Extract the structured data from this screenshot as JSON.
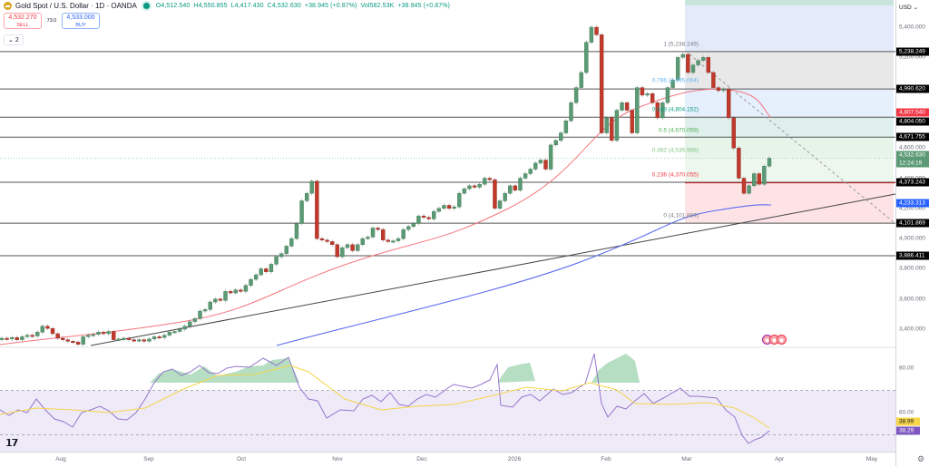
{
  "header": {
    "symbol_title": "Gold Spot / U.S. Dollar · 1D · OANDA",
    "open": "O4,512.540",
    "high": "H4,550.855",
    "low": "L4,417.430",
    "close": "C4,532.630",
    "change": "+38.945 (+0.87%)",
    "volume": "Vol582.53K",
    "volume_change": "+38.945 (+0.87%)",
    "sell_price": "4,532.270",
    "sell_label": "SELL",
    "spread": "73.0",
    "buy_price": "4,533.000",
    "buy_label": "BUY",
    "collapse_label": "2"
  },
  "price_axis": {
    "currency": "USD",
    "ticks": [
      "5,400.000",
      "5,200.000",
      "4,600.000",
      "4,400.000",
      "4,200.000",
      "4,000.000",
      "3,800.000",
      "3,600.000",
      "3,400.000"
    ],
    "tags": [
      {
        "value": "5,238.249",
        "color": "#000000"
      },
      {
        "value": "4,990.620",
        "color": "#000000"
      },
      {
        "value": "4,807.540",
        "color": "#f23645"
      },
      {
        "value": "4,804.050",
        "color": "#000000"
      },
      {
        "value": "4,671.755",
        "color": "#000000"
      },
      {
        "value": "4,532.630",
        "color": "#5b9a74"
      },
      {
        "value": "12:24:19",
        "color": "#5b9a74"
      },
      {
        "value": "4,373.243",
        "color": "#000000"
      },
      {
        "value": "4,233.313",
        "color": "#2962ff"
      },
      {
        "value": "4,101.869",
        "color": "#000000"
      },
      {
        "value": "3,886.411",
        "color": "#000000"
      }
    ]
  },
  "rsi_axis": {
    "ticks": [
      "80.00",
      "60.00"
    ],
    "rsi_value": "38.29",
    "rsi_ma_value": "38.99",
    "rsi_color": "#7e57c2",
    "rsi_ma_color": "#f5d54a"
  },
  "time_axis": [
    "Aug",
    "Sep",
    "Oct",
    "Nov",
    "Dec",
    "2026",
    "Feb",
    "Mar",
    "Apr",
    "May"
  ],
  "fib_labels": [
    {
      "text": "1 (5,238.249)",
      "color": "#787b86"
    },
    {
      "text": "0.786 (4,995.064)",
      "color": "#64b5f6"
    },
    {
      "text": "0.618 (4,804.152)",
      "color": "#089981"
    },
    {
      "text": "0.5 (4,670.059)",
      "color": "#4caf50"
    },
    {
      "text": "0.382 (4,535.966)",
      "color": "#81c784"
    },
    {
      "text": "0.236 (4,370.055)",
      "color": "#f23645"
    },
    {
      "text": "0 (4,101.869)",
      "color": "#787b86"
    }
  ],
  "chart_data": {
    "type": "candlestick",
    "title": "Gold Spot / U.S. Dollar · 1D · OANDA",
    "x_range": [
      "2025-07-15",
      "2026-05-10"
    ],
    "y_range": [
      3300,
      5500
    ],
    "horizontal_levels": [
      5238.249,
      4990.62,
      4804.05,
      4671.755,
      4373.243,
      4101.869,
      3886.411
    ],
    "fibonacci": {
      "from": 4101.869,
      "to": 5238.249,
      "levels": [
        {
          "ratio": 1,
          "price": 5238.249
        },
        {
          "ratio": 0.786,
          "price": 4995.064
        },
        {
          "ratio": 0.618,
          "price": 4804.152
        },
        {
          "ratio": 0.5,
          "price": 4670.059
        },
        {
          "ratio": 0.382,
          "price": 4535.966
        },
        {
          "ratio": 0.236,
          "price": 4370.055
        },
        {
          "ratio": 0,
          "price": 4101.869
        }
      ]
    },
    "moving_averages": [
      {
        "name": "MA (red)",
        "color": "#f23645",
        "last": 4807.54
      },
      {
        "name": "MA (blue)",
        "color": "#2962ff",
        "last": 4233.313
      }
    ],
    "close_series_approx": {
      "dates": [
        "Jul",
        "Aug",
        "Sep",
        "Oct-mid",
        "Oct-20",
        "Nov",
        "Dec",
        "Jan",
        "Jan-29",
        "Feb",
        "Mar-1",
        "Mar-20",
        "Mar-27"
      ],
      "close": [
        3340,
        3350,
        3460,
        4100,
        4300,
        4000,
        4200,
        4600,
        5400,
        4900,
        5240,
        4250,
        4532.63
      ]
    },
    "rsi": {
      "upper": 70,
      "middle": 50,
      "lower": 30,
      "ticks": [
        80,
        60
      ],
      "last_rsi": 38.29,
      "last_ma": 38.99
    }
  }
}
